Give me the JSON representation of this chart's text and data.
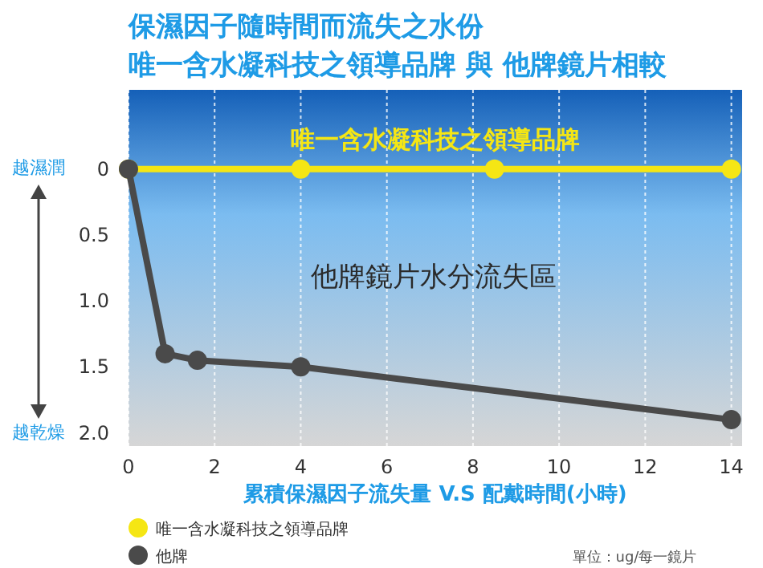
{
  "chart_data": {
    "type": "line",
    "title": "保濕因子隨時間而流失之水份",
    "subtitle": "唯一含水凝科技之領導品牌 與 他牌鏡片相較",
    "xlabel": "累積保濕因子流失量 V.S 配戴時間(小時)",
    "series": [
      {
        "name": "唯一含水凝科技之領導品牌",
        "color": "#f5e614",
        "x": [
          0,
          4,
          8.5,
          14
        ],
        "values": [
          0,
          0,
          0,
          0
        ]
      },
      {
        "name": "他牌",
        "color": "#4a4a4a",
        "x": [
          0,
          0.85,
          1.6,
          4,
          14
        ],
        "values": [
          0,
          1.4,
          1.45,
          1.5,
          1.9
        ]
      }
    ],
    "xlim": [
      0,
      14.25
    ],
    "xticks": [
      0,
      2,
      4,
      6,
      8,
      10,
      12,
      14
    ],
    "ylim": [
      2.1,
      -0.6
    ],
    "yticks": [
      0,
      0.5,
      {
        "value": 1,
        "label": "1.0"
      },
      1.5,
      {
        "value": 2,
        "label": "2.0"
      }
    ],
    "grid": "x",
    "marker": "circle",
    "line_style": "solid",
    "legend": "bottom left",
    "annotations": [
      "唯一含水凝科技之領導品牌",
      "他牌鏡片水分流失區",
      "越濕潤",
      "越乾燥",
      "單位：ug/每一鏡片"
    ]
  }
}
